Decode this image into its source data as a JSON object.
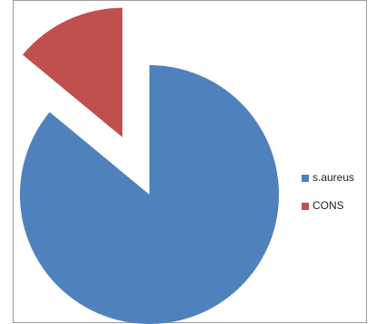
{
  "chart_data": {
    "type": "pie",
    "categories": [
      "s.aureus",
      "CONS"
    ],
    "values": [
      86,
      14
    ],
    "colors": [
      "#4f81bd",
      "#c0504d"
    ],
    "explode": [
      false,
      true
    ],
    "legend": "right"
  }
}
